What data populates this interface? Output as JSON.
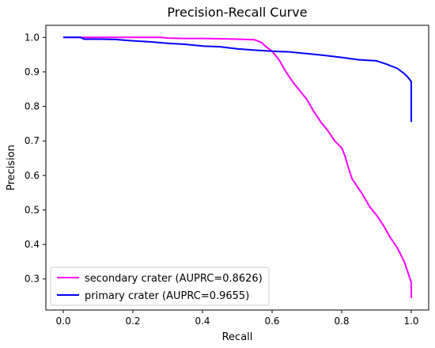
{
  "chart_data": {
    "type": "line",
    "title": "Precision-Recall Curve",
    "xlabel": "Recall",
    "ylabel": "Precision",
    "xlim": [
      -0.05,
      1.05
    ],
    "ylim": [
      0.21,
      1.035
    ],
    "xticks": [
      0.0,
      0.2,
      0.4,
      0.6,
      0.8,
      1.0
    ],
    "xtick_labels": [
      "0.0",
      "0.2",
      "0.4",
      "0.6",
      "0.8",
      "1.0"
    ],
    "yticks": [
      0.3,
      0.4,
      0.5,
      0.6,
      0.7,
      0.8,
      0.9,
      1.0
    ],
    "ytick_labels": [
      "0.3",
      "0.4",
      "0.5",
      "0.6",
      "0.7",
      "0.8",
      "0.9",
      "1.0"
    ],
    "grid": false,
    "legend_position": "lower-left",
    "series": [
      {
        "name": "secondary crater (AUPRC=0.8626)",
        "color": "#ff00ff",
        "x": [
          0.0,
          0.05,
          0.1,
          0.15,
          0.2,
          0.25,
          0.28,
          0.3,
          0.35,
          0.4,
          0.45,
          0.5,
          0.55,
          0.57,
          0.58,
          0.6,
          0.62,
          0.64,
          0.66,
          0.68,
          0.7,
          0.72,
          0.74,
          0.76,
          0.78,
          0.8,
          0.81,
          0.82,
          0.83,
          0.84,
          0.86,
          0.88,
          0.9,
          0.92,
          0.94,
          0.96,
          0.98,
          0.99,
          1.0,
          1.0
        ],
        "y": [
          1.0,
          1.0,
          1.0,
          1.0,
          1.0,
          1.0,
          1.0,
          0.998,
          0.997,
          0.997,
          0.996,
          0.995,
          0.993,
          0.985,
          0.975,
          0.96,
          0.935,
          0.9,
          0.87,
          0.845,
          0.82,
          0.785,
          0.755,
          0.73,
          0.7,
          0.68,
          0.655,
          0.62,
          0.59,
          0.575,
          0.545,
          0.51,
          0.485,
          0.455,
          0.42,
          0.39,
          0.35,
          0.32,
          0.29,
          0.245
        ]
      },
      {
        "name": "primary crater (AUPRC=0.9655)",
        "color": "#0000ff",
        "x": [
          0.0,
          0.05,
          0.06,
          0.1,
          0.15,
          0.2,
          0.25,
          0.3,
          0.35,
          0.4,
          0.45,
          0.5,
          0.55,
          0.6,
          0.65,
          0.7,
          0.75,
          0.8,
          0.85,
          0.9,
          0.93,
          0.96,
          0.98,
          0.99,
          1.0,
          1.0
        ],
        "y": [
          1.0,
          1.0,
          0.995,
          0.995,
          0.994,
          0.99,
          0.987,
          0.983,
          0.98,
          0.975,
          0.973,
          0.967,
          0.963,
          0.96,
          0.958,
          0.953,
          0.948,
          0.942,
          0.935,
          0.932,
          0.922,
          0.91,
          0.895,
          0.885,
          0.872,
          0.755
        ]
      }
    ]
  }
}
